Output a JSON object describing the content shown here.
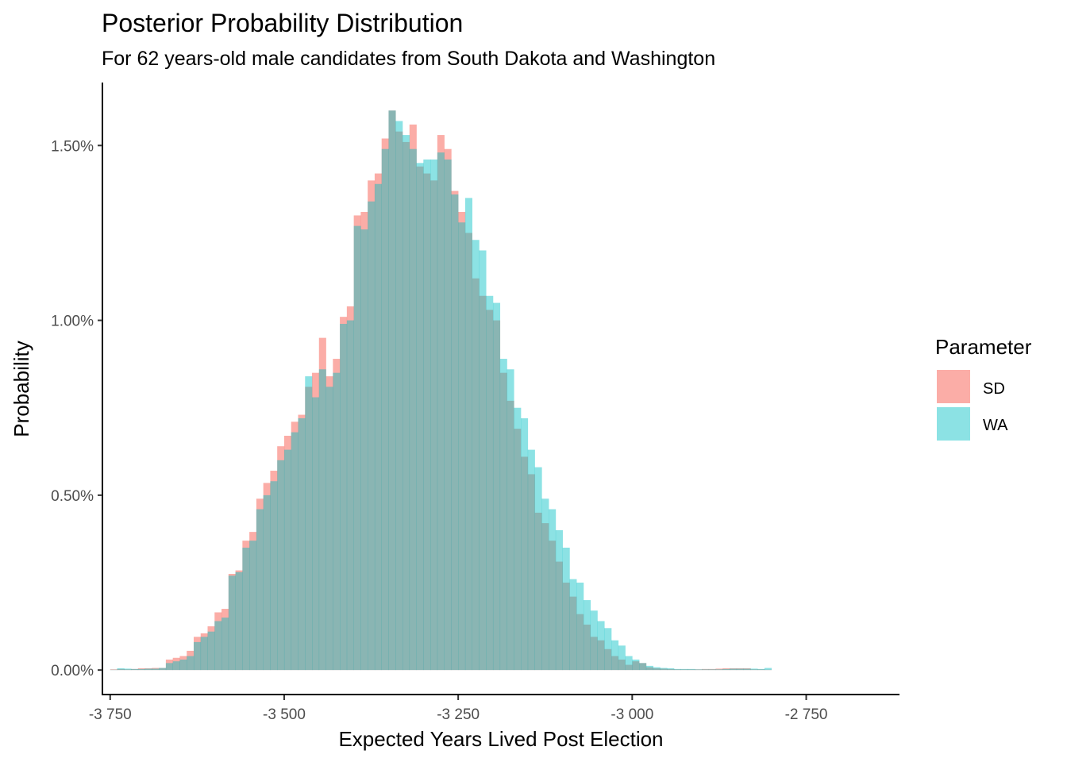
{
  "chart_data": {
    "type": "bar",
    "title": "Posterior Probability Distribution",
    "subtitle": "For 62 years-old male candidates from South Dakota and Washington",
    "xlabel": "Expected Years Lived Post Election",
    "ylabel": "Probability",
    "xlim": [
      -3760,
      -2616
    ],
    "ylim": [
      -0.0007,
      0.0168
    ],
    "x_ticks": [
      -3750,
      -3500,
      -3250,
      -3000,
      -2750
    ],
    "x_tick_labels": [
      "-3 750",
      "-3 500",
      "-3 250",
      "-3 000",
      "-2 750"
    ],
    "y_ticks": [
      0,
      0.005,
      0.01,
      0.015
    ],
    "y_tick_labels": [
      "0.00%",
      "0.50%",
      "1.00%",
      "1.50%"
    ],
    "bin_width": 10,
    "x_start": -3750,
    "legend": {
      "title": "Parameter",
      "position": "right"
    },
    "grid": false,
    "series": [
      {
        "name": "SD",
        "color": "#F8766D",
        "values": [
          2e-05,
          3e-05,
          2e-05,
          3e-05,
          5e-05,
          5e-05,
          6e-05,
          6e-05,
          0.0003,
          0.00035,
          0.0004,
          0.00055,
          0.00095,
          0.00105,
          0.00125,
          0.00165,
          0.00175,
          0.00275,
          0.00285,
          0.0037,
          0.00395,
          0.0049,
          0.00535,
          0.0057,
          0.0064,
          0.0067,
          0.0071,
          0.0073,
          0.0081,
          0.0085,
          0.0095,
          0.0084,
          0.0089,
          0.0101,
          0.0104,
          0.013,
          0.0131,
          0.014,
          0.0142,
          0.0152,
          0.016,
          0.0154,
          0.0151,
          0.0156,
          0.0144,
          0.0142,
          0.014,
          0.0153,
          0.0149,
          0.0137,
          0.0131,
          0.0125,
          0.0112,
          0.0107,
          0.0103,
          0.01,
          0.0085,
          0.0077,
          0.0069,
          0.0061,
          0.0056,
          0.0045,
          0.0042,
          0.0037,
          0.0031,
          0.0025,
          0.0021,
          0.0016,
          0.0013,
          0.00095,
          0.00085,
          0.0006,
          0.0004,
          0.0003,
          0.00015,
          0.00025,
          0.0002,
          8e-05,
          5e-05,
          4e-05,
          3e-05,
          2e-05,
          2e-05,
          2e-05,
          2e-05,
          3e-05,
          3e-05,
          4e-05,
          5e-05,
          5e-05,
          5e-05,
          5e-05,
          2e-05,
          2e-05,
          1e-05
        ]
      },
      {
        "name": "WA",
        "color": "#00BFC4",
        "values": [
          1e-05,
          5e-05,
          4e-05,
          3e-05,
          3e-05,
          4e-05,
          4e-05,
          6e-05,
          0.0002,
          0.00025,
          0.0003,
          0.0004,
          0.0008,
          0.00095,
          0.0011,
          0.0014,
          0.0015,
          0.0027,
          0.0028,
          0.0035,
          0.0037,
          0.0046,
          0.005,
          0.0054,
          0.006,
          0.0063,
          0.0068,
          0.0072,
          0.0084,
          0.0078,
          0.0086,
          0.0081,
          0.0085,
          0.0099,
          0.01,
          0.0127,
          0.0126,
          0.0134,
          0.0139,
          0.0149,
          0.016,
          0.0157,
          0.0153,
          0.0149,
          0.0145,
          0.0146,
          0.0146,
          0.0148,
          0.0146,
          0.0136,
          0.0128,
          0.0135,
          0.0123,
          0.012,
          0.0107,
          0.0105,
          0.0089,
          0.0086,
          0.0075,
          0.0072,
          0.0063,
          0.0058,
          0.0049,
          0.0046,
          0.004,
          0.0035,
          0.0026,
          0.0025,
          0.002,
          0.0017,
          0.0014,
          0.0012,
          0.00085,
          0.0007,
          0.0004,
          0.0003,
          0.0002,
          0.00012,
          8e-05,
          6e-05,
          5e-05,
          3e-05,
          3e-05,
          3e-05,
          2e-05,
          2e-05,
          2e-05,
          2e-05,
          3e-05,
          4e-05,
          4e-05,
          4e-05,
          4e-05,
          3e-05,
          6e-05
        ]
      }
    ]
  }
}
